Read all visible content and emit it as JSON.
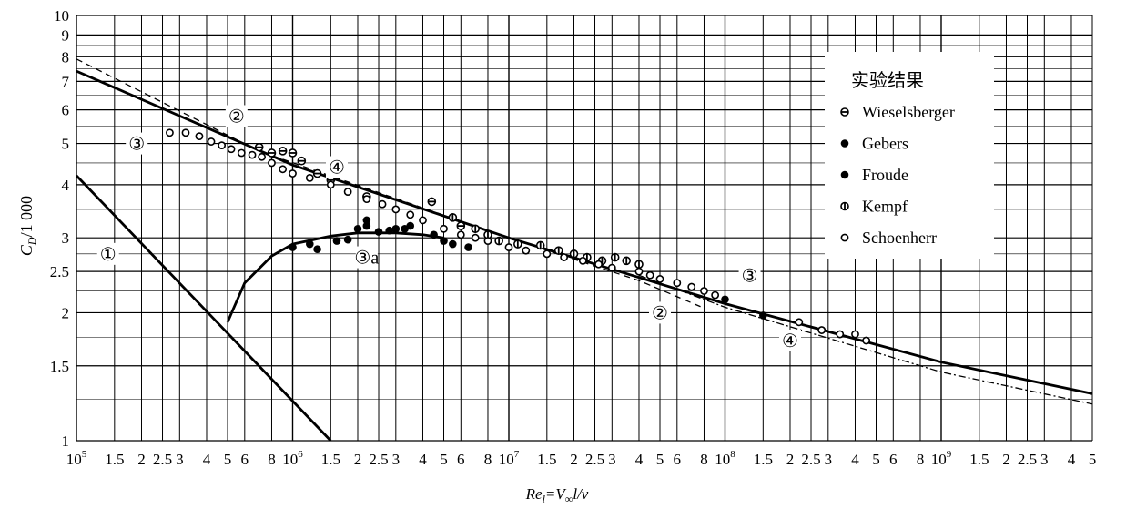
{
  "chart_data": {
    "type": "scatter",
    "title": "",
    "xlabel": "Re_l=V_∞l/ν",
    "ylabel": "C_D/1 000",
    "x_scale": "log",
    "y_scale": "log",
    "xlim": [
      100000,
      5000000000
    ],
    "ylim": [
      1,
      10
    ],
    "grid": true,
    "x_ticks": [
      {
        "v": 100000,
        "base": "10",
        "exp": "5"
      },
      {
        "v": 150000,
        "label": "1.5"
      },
      {
        "v": 200000,
        "label": "2"
      },
      {
        "v": 250000,
        "label": "2.5"
      },
      {
        "v": 300000,
        "label": "3"
      },
      {
        "v": 400000,
        "label": "4"
      },
      {
        "v": 500000,
        "label": "5"
      },
      {
        "v": 600000,
        "label": "6"
      },
      {
        "v": 800000,
        "label": "8"
      },
      {
        "v": 1000000,
        "base": "10",
        "exp": "6"
      },
      {
        "v": 1500000,
        "label": "1.5"
      },
      {
        "v": 2000000,
        "label": "2"
      },
      {
        "v": 2500000,
        "label": "2.5"
      },
      {
        "v": 3000000,
        "label": "3"
      },
      {
        "v": 4000000,
        "label": "4"
      },
      {
        "v": 5000000,
        "label": "5"
      },
      {
        "v": 6000000,
        "label": "6"
      },
      {
        "v": 8000000,
        "label": "8"
      },
      {
        "v": 10000000,
        "base": "10",
        "exp": "7"
      },
      {
        "v": 15000000,
        "label": "1.5"
      },
      {
        "v": 20000000,
        "label": "2"
      },
      {
        "v": 25000000,
        "label": "2.5"
      },
      {
        "v": 30000000,
        "label": "3"
      },
      {
        "v": 40000000,
        "label": "4"
      },
      {
        "v": 50000000,
        "label": "5"
      },
      {
        "v": 60000000,
        "label": "6"
      },
      {
        "v": 80000000,
        "label": "8"
      },
      {
        "v": 100000000,
        "base": "10",
        "exp": "8"
      },
      {
        "v": 150000000,
        "label": "1.5"
      },
      {
        "v": 200000000,
        "label": "2"
      },
      {
        "v": 250000000,
        "label": "2.5"
      },
      {
        "v": 300000000,
        "label": "3"
      },
      {
        "v": 400000000,
        "label": "4"
      },
      {
        "v": 500000000,
        "label": "5"
      },
      {
        "v": 600000000,
        "label": "6"
      },
      {
        "v": 800000000,
        "label": "8"
      },
      {
        "v": 1000000000,
        "base": "10",
        "exp": "9"
      },
      {
        "v": 1500000000,
        "label": "1.5"
      },
      {
        "v": 2000000000,
        "label": "2"
      },
      {
        "v": 2500000000,
        "label": "2.5"
      },
      {
        "v": 3000000000,
        "label": "3"
      },
      {
        "v": 4000000000,
        "label": "4"
      },
      {
        "v": 5000000000,
        "label": "5"
      }
    ],
    "y_ticks": [
      {
        "v": 1,
        "label": "1"
      },
      {
        "v": 1.5,
        "label": "1.5"
      },
      {
        "v": 2,
        "label": "2"
      },
      {
        "v": 2.5,
        "label": "2.5"
      },
      {
        "v": 3,
        "label": "3"
      },
      {
        "v": 4,
        "label": "4"
      },
      {
        "v": 5,
        "label": "5"
      },
      {
        "v": 6,
        "label": "6"
      },
      {
        "v": 7,
        "label": "7"
      },
      {
        "v": 8,
        "label": "8"
      },
      {
        "v": 9,
        "label": "9"
      },
      {
        "v": 10,
        "label": "10"
      }
    ],
    "legend": {
      "title": "实验结果",
      "placement": "upper-right",
      "entries": [
        {
          "name": "Wieselsberger",
          "marker": "circle-horizontal-bar"
        },
        {
          "name": "Gebers",
          "marker": "filled-circle"
        },
        {
          "name": "Froude",
          "marker": "filled-circle"
        },
        {
          "name": "Kempf",
          "marker": "circle-vertical-bar"
        },
        {
          "name": "Schoenherr",
          "marker": "open-circle"
        }
      ]
    },
    "curves": [
      {
        "id": "laminar",
        "label": "①",
        "style": "solid",
        "points": [
          [
            100000,
            4.2
          ],
          [
            1500000,
            1.0
          ]
        ]
      },
      {
        "id": "turbulent",
        "label": "③",
        "style": "solid",
        "points": [
          [
            100000,
            7.4
          ],
          [
            1000000,
            4.45
          ],
          [
            10000000,
            3.0
          ],
          [
            100000000,
            2.1
          ],
          [
            1000000000,
            1.53
          ],
          [
            5000000000,
            1.29
          ]
        ]
      },
      {
        "id": "transition",
        "label": "③a",
        "style": "solid",
        "points": [
          [
            500000,
            1.9
          ],
          [
            600000,
            2.35
          ],
          [
            800000,
            2.72
          ],
          [
            1000000,
            2.9
          ],
          [
            1500000,
            3.03
          ],
          [
            2000000,
            3.08
          ],
          [
            3000000,
            3.08
          ],
          [
            4000000,
            3.05
          ],
          [
            5000000,
            3.0
          ]
        ]
      },
      {
        "id": "dashed",
        "label": "②",
        "style": "dashed",
        "points": [
          [
            100000,
            7.9
          ],
          [
            700000,
            4.8
          ],
          [
            10000000,
            3.0
          ],
          [
            40000000,
            2.38
          ],
          [
            80000000,
            2.05
          ]
        ]
      },
      {
        "id": "dash-dot",
        "label": "④",
        "style": "dash-dot",
        "points": [
          [
            40000000,
            2.45
          ],
          [
            100000000,
            2.06
          ],
          [
            1000000000,
            1.45
          ],
          [
            5000000000,
            1.22
          ]
        ]
      }
    ],
    "curve_labels": [
      {
        "text": "①",
        "x": 140000,
        "y": 2.75
      },
      {
        "text": "②",
        "x": 550000,
        "y": 5.8
      },
      {
        "text": "②",
        "x": 50000000,
        "y": 2.0
      },
      {
        "text": "③",
        "x": 190000,
        "y": 5.0
      },
      {
        "text": "③",
        "x": 130000000,
        "y": 2.45
      },
      {
        "text": "③a",
        "x": 2200000,
        "y": 2.7
      },
      {
        "text": "④",
        "x": 1600000,
        "y": 4.4
      },
      {
        "text": "④",
        "x": 200000000,
        "y": 1.72
      }
    ],
    "series": [
      {
        "name": "Wieselsberger",
        "marker": "circle-horizontal-bar",
        "x": [
          700000,
          800000,
          900000,
          1000000,
          1100000,
          1300000,
          1500000,
          2200000,
          4400000,
          6000000
        ],
        "y": [
          4.9,
          4.75,
          4.8,
          4.75,
          4.55,
          4.25,
          4.1,
          3.75,
          3.65,
          3.2
        ]
      },
      {
        "name": "Gebers",
        "marker": "filled-circle",
        "x": [
          1000000,
          1300000,
          1600000,
          1800000,
          2200000,
          2500000,
          3000000,
          3500000,
          4500000,
          5000000
        ],
        "y": [
          2.85,
          2.82,
          2.95,
          2.97,
          3.2,
          3.1,
          3.15,
          3.2,
          3.05,
          2.95
        ]
      },
      {
        "name": "Froude",
        "marker": "filled-circle",
        "x": [
          1200000,
          2000000,
          2200000,
          2800000,
          3300000,
          5500000,
          6500000,
          100000000,
          150000000
        ],
        "y": [
          2.9,
          3.15,
          3.3,
          3.12,
          3.15,
          2.9,
          2.85,
          2.15,
          1.97
        ]
      },
      {
        "name": "Kempf",
        "marker": "circle-vertical-bar",
        "x": [
          5500000,
          7000000,
          8000000,
          9000000,
          11000000,
          14000000,
          17000000,
          20000000,
          23000000,
          27000000,
          31000000,
          35000000,
          40000000
        ],
        "y": [
          3.35,
          3.15,
          3.05,
          2.95,
          2.9,
          2.88,
          2.8,
          2.75,
          2.7,
          2.65,
          2.7,
          2.65,
          2.6
        ]
      },
      {
        "name": "Schoenherr",
        "marker": "open-circle",
        "x": [
          270000,
          320000,
          370000,
          420000,
          470000,
          520000,
          580000,
          650000,
          720000,
          800000,
          900000,
          1000000,
          1200000,
          1500000,
          1800000,
          2200000,
          2600000,
          3000000,
          3500000,
          4000000,
          5000000,
          6000000,
          7000000,
          8000000,
          10000000,
          12000000,
          15000000,
          18000000,
          22000000,
          26000000,
          30000000,
          40000000,
          45000000,
          50000000,
          60000000,
          70000000,
          80000000,
          90000000,
          220000000,
          280000000,
          340000000,
          400000000,
          450000000
        ],
        "y": [
          5.3,
          5.3,
          5.2,
          5.05,
          4.95,
          4.85,
          4.75,
          4.7,
          4.65,
          4.5,
          4.35,
          4.25,
          4.15,
          4.0,
          3.85,
          3.7,
          3.6,
          3.5,
          3.4,
          3.3,
          3.15,
          3.05,
          3.0,
          2.95,
          2.85,
          2.8,
          2.75,
          2.7,
          2.65,
          2.6,
          2.55,
          2.5,
          2.45,
          2.4,
          2.35,
          2.3,
          2.25,
          2.2,
          1.9,
          1.82,
          1.78,
          1.78,
          1.72
        ]
      }
    ]
  }
}
